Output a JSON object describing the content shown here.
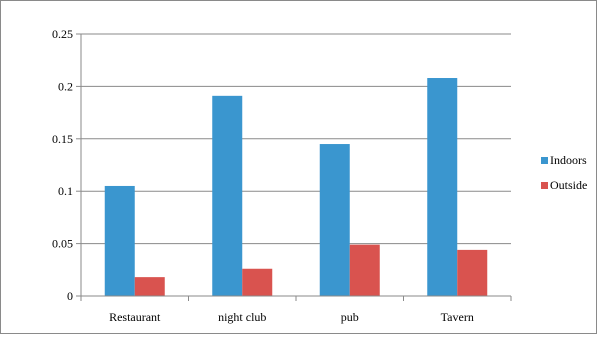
{
  "chart_data": {
    "type": "bar",
    "title": "",
    "xlabel": "",
    "ylabel": "",
    "categories": [
      "Restaurant",
      "night club",
      "pub",
      "Tavern"
    ],
    "series": [
      {
        "name": "Indoors",
        "color": "#3a96cf",
        "values": [
          0.105,
          0.191,
          0.145,
          0.208
        ]
      },
      {
        "name": "Outside",
        "color": "#d9534f",
        "values": [
          0.018,
          0.026,
          0.049,
          0.044
        ]
      }
    ],
    "ylim": [
      0,
      0.25
    ],
    "yticks": [
      "0",
      "0.05",
      "0.1",
      "0.15",
      "0.2",
      "0.25"
    ],
    "ytick_values": [
      0,
      0.05,
      0.1,
      0.15,
      0.2,
      0.25
    ],
    "grid": true,
    "legend": "right"
  }
}
